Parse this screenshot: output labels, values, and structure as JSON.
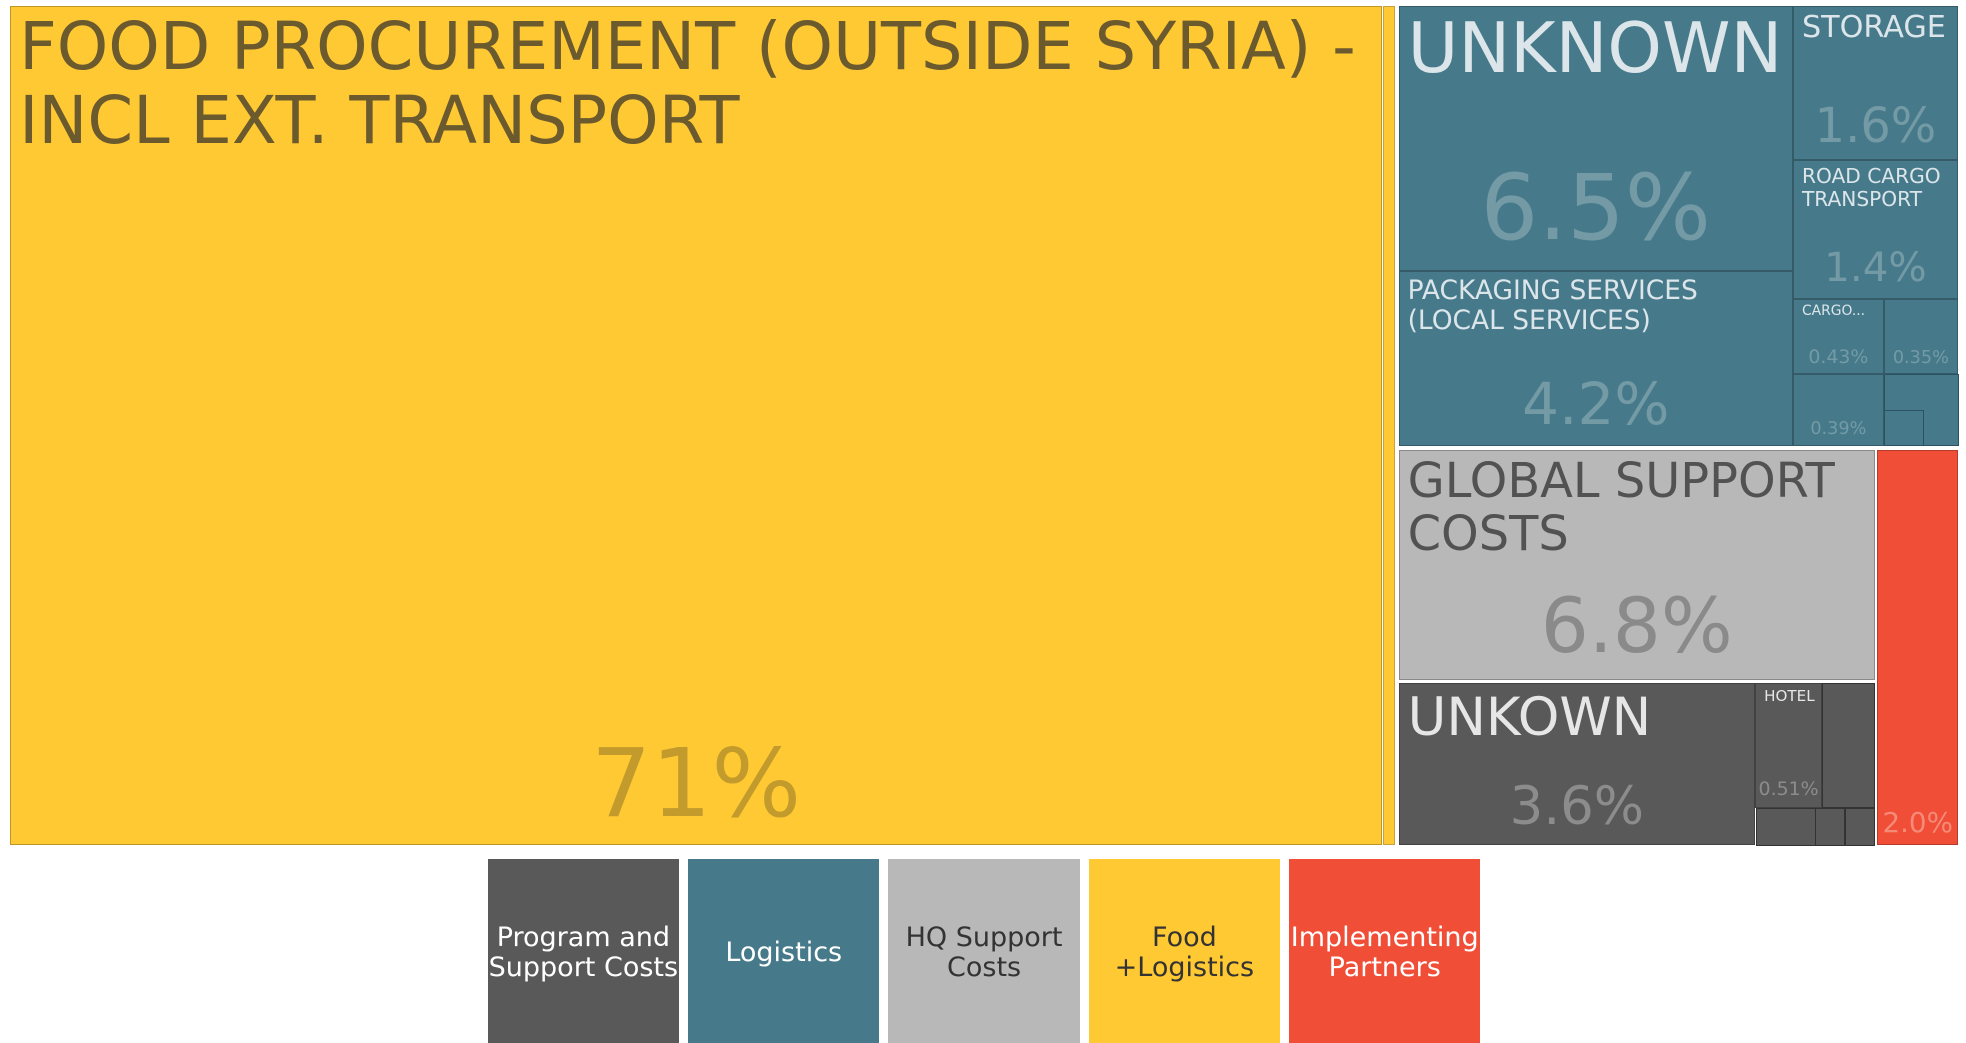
{
  "chart_data": {
    "type": "treemap",
    "groups": [
      {
        "name": "Program and Support Costs",
        "color": "#595959",
        "tiles": [
          {
            "label": "UNKOWN",
            "value": 3.6,
            "value_label": "3.6%"
          },
          {
            "label": "HOTEL",
            "value": 0.51,
            "value_label": "0.51%"
          }
        ]
      },
      {
        "name": "Logistics",
        "color": "#467a8a",
        "tiles": [
          {
            "label": "UNKNOWN",
            "value": 6.5,
            "value_label": "6.5%"
          },
          {
            "label": "PACKAGING SERVICES (LOCAL SERVICES)",
            "value": 4.2,
            "value_label": "4.2%"
          },
          {
            "label": "STORAGE",
            "value": 1.6,
            "value_label": "1.6%"
          },
          {
            "label": "ROAD CARGO TRANSPORT",
            "value": 1.4,
            "value_label": "1.4%"
          },
          {
            "label": "CARGO...",
            "value": 0.43,
            "value_label": "0.43%"
          },
          {
            "label": null,
            "value": 0.35,
            "value_label": "0.35%"
          },
          {
            "label": null,
            "value": 0.39,
            "value_label": "0.39%"
          }
        ]
      },
      {
        "name": "HQ Support Costs",
        "color": "#b8b8b8",
        "tiles": [
          {
            "label": "GLOBAL SUPPORT COSTS",
            "value": 6.8,
            "value_label": "6.8%"
          }
        ]
      },
      {
        "name": "Food +Logistics",
        "color": "#ffc933",
        "tiles": [
          {
            "label": "FOOD PROCUREMENT (OUTSIDE SYRIA) - INCL EXT. TRANSPORT",
            "value": 71,
            "value_label": "71%"
          }
        ]
      },
      {
        "name": "Implementing Partners",
        "color": "#f04e37",
        "tiles": [
          {
            "label": null,
            "value": 2.0,
            "value_label": "2.0%"
          }
        ]
      }
    ]
  }
}
